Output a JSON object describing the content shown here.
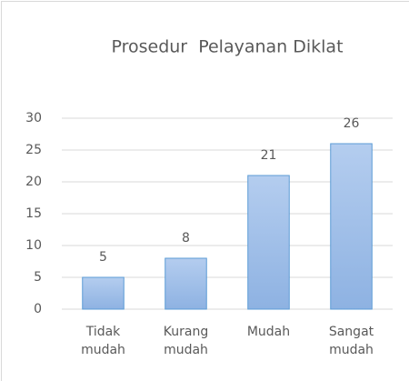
{
  "chart_data": {
    "type": "bar",
    "title": "Prosedur  Pelayanan Diklat",
    "categories": [
      "Tidak mudah",
      "Kurang mudah",
      "Mudah",
      "Sangat mudah"
    ],
    "values": [
      5,
      8,
      21,
      26
    ],
    "color": "url(#g)",
    "ylim": [
      0,
      30
    ],
    "yticks": [
      0,
      5,
      10,
      15,
      20,
      25,
      30
    ],
    "grid": true
  }
}
